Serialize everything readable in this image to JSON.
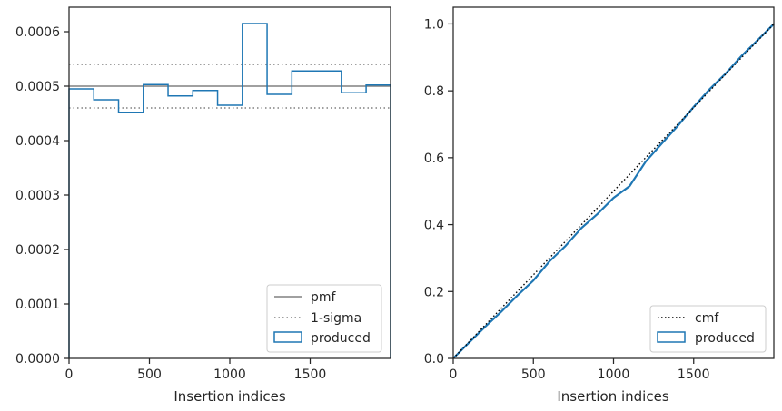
{
  "chart_data": [
    {
      "type": "step",
      "xlabel": "Insertion indices",
      "ylabel": "",
      "xlim": [
        0,
        2000
      ],
      "ylim": [
        0,
        0.000645
      ],
      "xticks": [
        0,
        500,
        1000,
        1500
      ],
      "xtick_labels": [
        "0",
        "500",
        "1000",
        "1500"
      ],
      "yticks": [
        0,
        0.0001,
        0.0002,
        0.0003,
        0.0004,
        0.0005,
        0.0006
      ],
      "ytick_labels": [
        "0.0000",
        "0.0001",
        "0.0002",
        "0.0003",
        "0.0004",
        "0.0005",
        "0.0006"
      ],
      "pmf": 0.0005,
      "sigma_band": [
        0.00046,
        0.00054
      ],
      "bin_edges": [
        0,
        154,
        308,
        462,
        616,
        770,
        924,
        1078,
        1232,
        1386,
        1540,
        1694,
        1848,
        2000
      ],
      "hist_values": [
        0.000495,
        0.000475,
        0.000452,
        0.000503,
        0.000482,
        0.000492,
        0.000465,
        0.000615,
        0.000485,
        0.000528,
        0.000528,
        0.000488,
        0.000502
      ],
      "legend": {
        "placement": "lower-right",
        "entries": [
          {
            "label": "pmf",
            "color": "#808080",
            "style": "solid"
          },
          {
            "label": "1-sigma",
            "color": "#808080",
            "style": "dotted"
          },
          {
            "label": "produced",
            "color": "#1f77b4",
            "style": "box"
          }
        ]
      }
    },
    {
      "type": "line",
      "xlabel": "Insertion indices",
      "ylabel": "",
      "xlim": [
        0,
        2000
      ],
      "ylim": [
        0,
        1.05
      ],
      "xticks": [
        0,
        500,
        1000,
        1500
      ],
      "xtick_labels": [
        "0",
        "500",
        "1000",
        "1500"
      ],
      "yticks": [
        0,
        0.2,
        0.4,
        0.6,
        0.8,
        1.0
      ],
      "ytick_labels": [
        "0.0",
        "0.2",
        "0.4",
        "0.6",
        "0.8",
        "1.0"
      ],
      "cmf_x": [
        0,
        2000
      ],
      "cmf_y": [
        0,
        1
      ],
      "produced_x": [
        0,
        100,
        200,
        300,
        400,
        500,
        600,
        700,
        800,
        900,
        1000,
        1100,
        1200,
        1300,
        1400,
        1500,
        1600,
        1700,
        1800,
        1900,
        2000
      ],
      "produced_y": [
        0,
        0.048,
        0.095,
        0.14,
        0.188,
        0.233,
        0.29,
        0.336,
        0.39,
        0.432,
        0.48,
        0.515,
        0.588,
        0.642,
        0.695,
        0.752,
        0.805,
        0.852,
        0.905,
        0.952,
        1.0
      ],
      "legend": {
        "placement": "lower-right",
        "entries": [
          {
            "label": "cmf",
            "color": "#000000",
            "style": "dotted"
          },
          {
            "label": "produced",
            "color": "#1f77b4",
            "style": "box"
          }
        ]
      }
    }
  ],
  "colors": {
    "produced": "#1f77b4",
    "pmf": "#808080",
    "sigma": "#808080",
    "cmf": "#000000",
    "axes": "#262626"
  }
}
